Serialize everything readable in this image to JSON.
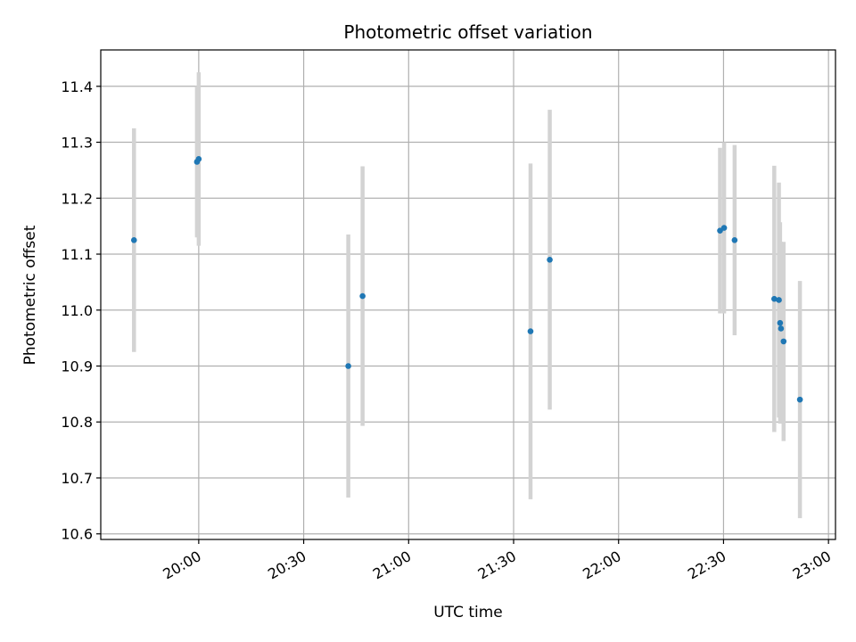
{
  "chart_data": {
    "type": "scatter",
    "title": "Photometric offset variation",
    "xlabel": "UTC time",
    "ylabel": "Photometric offset",
    "xlim": [
      "19:32",
      "23:02"
    ],
    "ylim": [
      10.59,
      11.465
    ],
    "x_ticks": [
      "20:00",
      "20:30",
      "21:00",
      "21:30",
      "22:00",
      "22:30",
      "23:00"
    ],
    "y_ticks": [
      "10.6",
      "10.7",
      "10.8",
      "10.9",
      "11.0",
      "11.1",
      "11.2",
      "11.3",
      "11.4"
    ],
    "grid": true,
    "marker_color": "#1f77b4",
    "errorbar_color": "#d3d3d3",
    "points": [
      {
        "x": "19:41:30",
        "y": 11.125,
        "err": 0.2
      },
      {
        "x": "19:59:30",
        "y": 11.265,
        "err": 0.135
      },
      {
        "x": "20:00:00",
        "y": 11.27,
        "err": 0.155
      },
      {
        "x": "20:42:45",
        "y": 10.9,
        "err": 0.235
      },
      {
        "x": "20:46:50",
        "y": 11.025,
        "err": 0.232
      },
      {
        "x": "21:34:50",
        "y": 10.962,
        "err": 0.3
      },
      {
        "x": "21:40:20",
        "y": 11.09,
        "err": 0.268
      },
      {
        "x": "22:29:00",
        "y": 11.142,
        "err": 0.148
      },
      {
        "x": "22:30:10",
        "y": 11.147,
        "err": 0.153
      },
      {
        "x": "22:33:10",
        "y": 11.125,
        "err": 0.17
      },
      {
        "x": "22:44:30",
        "y": 11.02,
        "err": 0.238
      },
      {
        "x": "22:45:50",
        "y": 11.018,
        "err": 0.21
      },
      {
        "x": "22:46:10",
        "y": 10.977,
        "err": 0.18
      },
      {
        "x": "22:46:25",
        "y": 10.967,
        "err": 0.155
      },
      {
        "x": "22:47:10",
        "y": 10.944,
        "err": 0.178
      },
      {
        "x": "22:51:50",
        "y": 10.84,
        "err": 0.212
      }
    ]
  }
}
